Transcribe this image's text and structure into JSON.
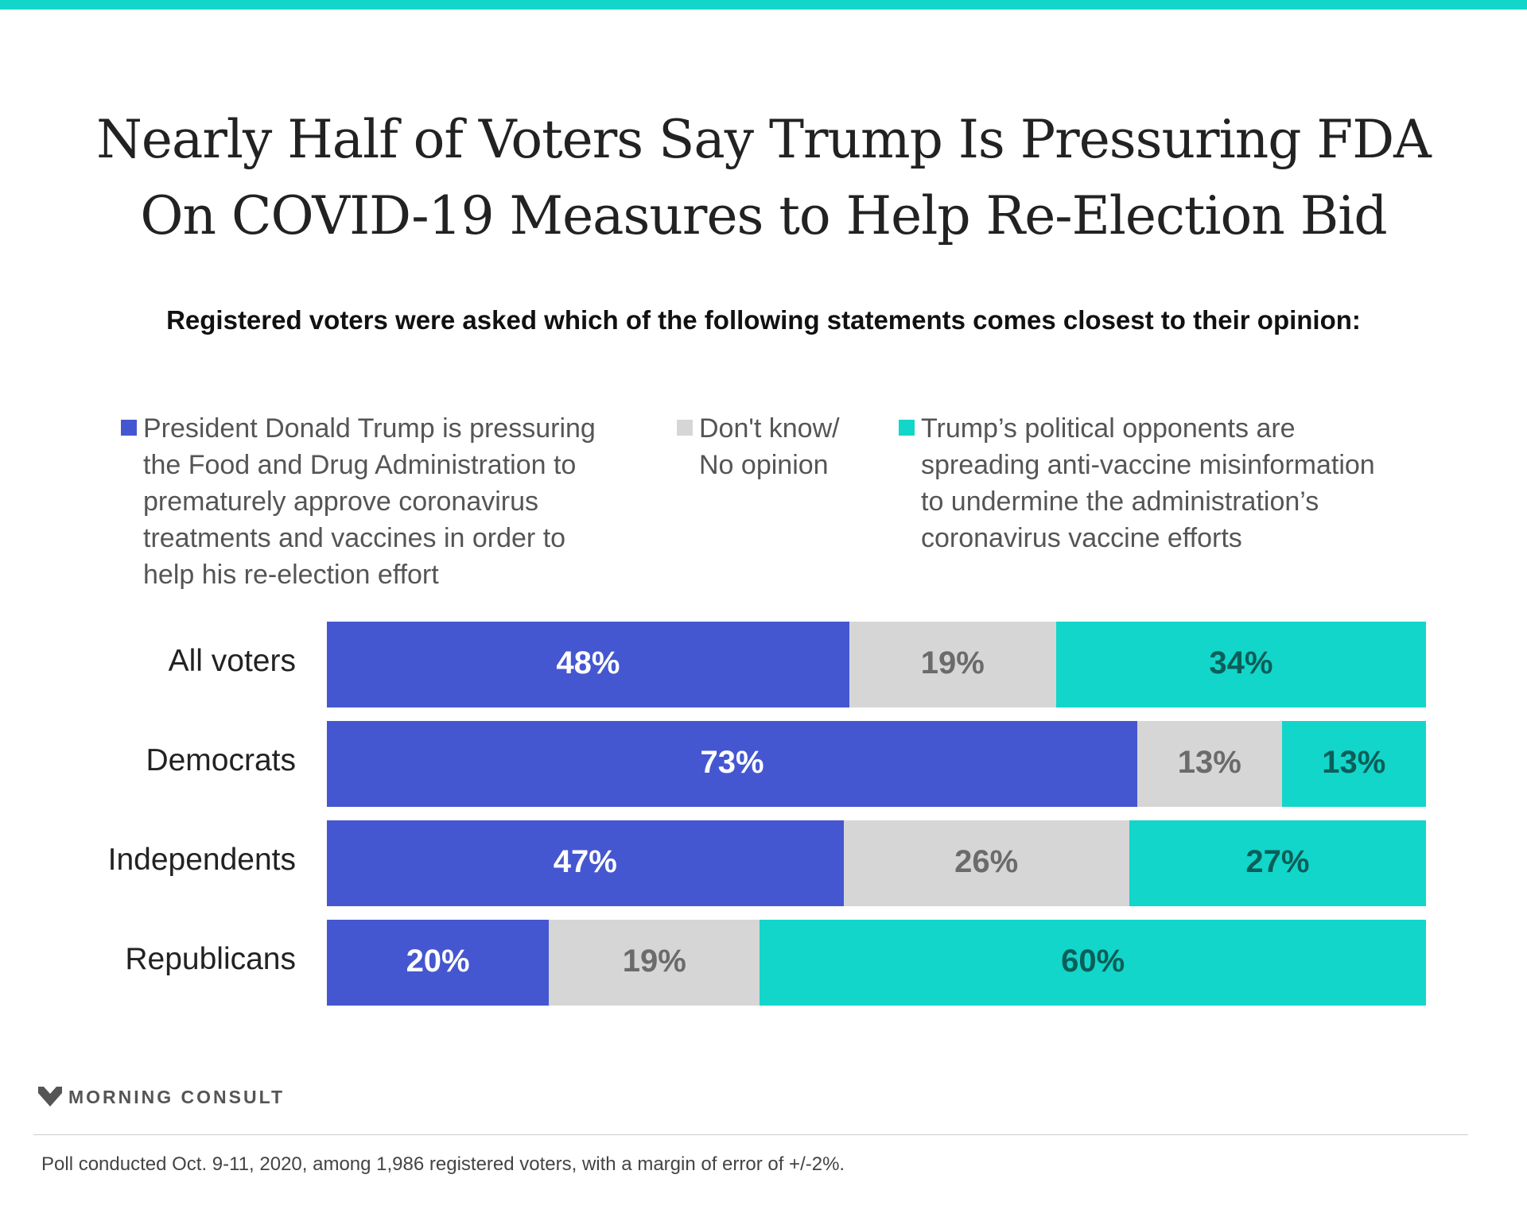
{
  "header": {
    "title_line1": "Nearly Half of Voters Say Trump Is Pressuring FDA",
    "title_line2": "On COVID-19 Measures to Help Re-Election Bid",
    "subtitle": "Registered voters were asked which of the following statements comes closest to their opinion:"
  },
  "colors": {
    "pressuring": "#4557d0",
    "dont_know": "#d6d6d6",
    "opponents": "#12d6c9",
    "top_bar": "#12d6c9"
  },
  "chart_data": {
    "type": "bar",
    "orientation": "horizontal",
    "stacked": true,
    "categories": [
      "All voters",
      "Democrats",
      "Independents",
      "Republicans"
    ],
    "series": [
      {
        "name": "President Donald Trump is pressuring\nthe Food and Drug Administration to\nprematurely approve coronavirus\ntreatments and vaccines in order to\nhelp his re-election effort",
        "values": [
          48,
          73,
          47,
          20
        ],
        "labels": [
          "48%",
          "73%",
          "47%",
          "20%"
        ],
        "color": "#4557d0",
        "label_color": "#ffffff"
      },
      {
        "name": "Don't know/\nNo opinion",
        "values": [
          19,
          13,
          26,
          19
        ],
        "labels": [
          "19%",
          "13%",
          "26%",
          "19%"
        ],
        "color": "#d6d6d6",
        "label_color": "#6b6b6b"
      },
      {
        "name": "Trump’s political opponents are\nspreading anti-vaccine misinformation\nto undermine the administration’s\ncoronavirus vaccine efforts",
        "values": [
          34,
          13,
          27,
          60
        ],
        "labels": [
          "34%",
          "13%",
          "27%",
          "60%"
        ],
        "color": "#12d6c9",
        "label_color": "#0a5e59"
      }
    ],
    "legend_position": "top",
    "grid": false
  },
  "footer": {
    "brand": "MORNING CONSULT",
    "brand_icon": "morning-consult-logo-icon",
    "note": "Poll conducted Oct. 9-11, 2020, among 1,986 registered voters, with a margin of error of +/-2%."
  }
}
